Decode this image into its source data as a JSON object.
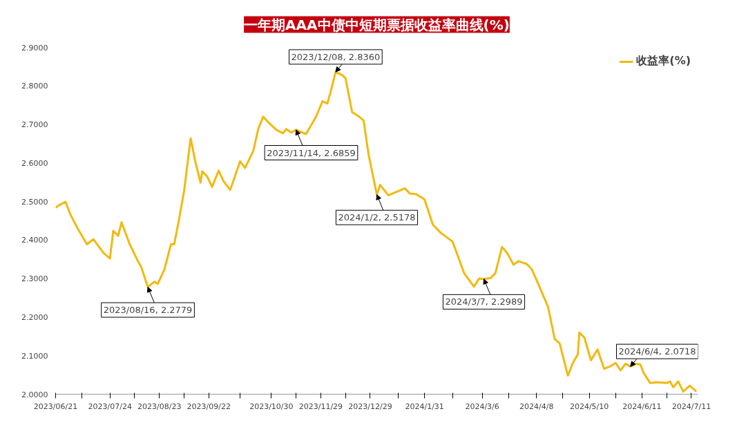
{
  "chart_data": {
    "type": "line",
    "title": "一年期AAA中债中短期票据收益率曲线(%)",
    "x": [
      "2023-06-21",
      "2023-06-23",
      "2023-06-27",
      "2023-06-30",
      "2023-07-04",
      "2023-07-10",
      "2023-07-14",
      "2023-07-20",
      "2023-07-24",
      "2023-07-26",
      "2023-07-29",
      "2023-07-31",
      "2023-08-05",
      "2023-08-10",
      "2023-08-12",
      "2023-08-16",
      "2023-08-20",
      "2023-08-22",
      "2023-08-26",
      "2023-08-30",
      "2023-09-01",
      "2023-09-04",
      "2023-09-07",
      "2023-09-11",
      "2023-09-14",
      "2023-09-17",
      "2023-09-18",
      "2023-09-21",
      "2023-09-24",
      "2023-09-28",
      "2023-10-01",
      "2023-10-05",
      "2023-10-11",
      "2023-10-14",
      "2023-10-19",
      "2023-10-22",
      "2023-10-25",
      "2023-10-29",
      "2023-11-02",
      "2023-11-06",
      "2023-11-08",
      "2023-11-11",
      "2023-11-14",
      "2023-11-20",
      "2023-11-26",
      "2023-11-30",
      "2023-12-03",
      "2023-12-05",
      "2023-12-08",
      "2023-12-12",
      "2023-12-14",
      "2023-12-18",
      "2023-12-22",
      "2023-12-25",
      "2023-12-28",
      "2024-01-02",
      "2024-01-04",
      "2024-01-09",
      "2024-01-15",
      "2024-01-19",
      "2024-01-22",
      "2024-01-26",
      "2024-01-31",
      "2024-02-05",
      "2024-02-10",
      "2024-02-17",
      "2024-02-24",
      "2024-03-01",
      "2024-03-04",
      "2024-03-07",
      "2024-03-11",
      "2024-03-14",
      "2024-03-18",
      "2024-03-21",
      "2024-03-25",
      "2024-03-28",
      "2024-04-02",
      "2024-04-05",
      "2024-04-09",
      "2024-04-15",
      "2024-04-19",
      "2024-04-22",
      "2024-04-27",
      "2024-04-30",
      "2024-05-03",
      "2024-05-04",
      "2024-05-07",
      "2024-05-11",
      "2024-05-15",
      "2024-05-19",
      "2024-05-23",
      "2024-05-26",
      "2024-05-29",
      "2024-06-01",
      "2024-06-04",
      "2024-06-07",
      "2024-06-10",
      "2024-06-12",
      "2024-06-16",
      "2024-06-20",
      "2024-06-26",
      "2024-06-28",
      "2024-06-30",
      "2024-07-03",
      "2024-07-06",
      "2024-07-10",
      "2024-07-14"
    ],
    "series": [
      {
        "name": "收益率(%)",
        "color": "#f2b90f",
        "values": [
          2.484,
          2.49,
          2.499,
          2.466,
          2.433,
          2.389,
          2.402,
          2.367,
          2.352,
          2.424,
          2.411,
          2.446,
          2.389,
          2.345,
          2.33,
          2.278,
          2.292,
          2.286,
          2.323,
          2.389,
          2.389,
          2.455,
          2.527,
          2.664,
          2.6,
          2.549,
          2.578,
          2.565,
          2.538,
          2.58,
          2.552,
          2.53,
          2.604,
          2.587,
          2.631,
          2.688,
          2.72,
          2.702,
          2.686,
          2.677,
          2.688,
          2.679,
          2.686,
          2.675,
          2.719,
          2.76,
          2.754,
          2.785,
          2.836,
          2.828,
          2.82,
          2.732,
          2.721,
          2.71,
          2.622,
          2.518,
          2.543,
          2.516,
          2.527,
          2.534,
          2.521,
          2.519,
          2.505,
          2.44,
          2.418,
          2.396,
          2.314,
          2.279,
          2.3,
          2.299,
          2.301,
          2.314,
          2.382,
          2.367,
          2.336,
          2.345,
          2.338,
          2.325,
          2.286,
          2.226,
          2.143,
          2.132,
          2.048,
          2.081,
          2.103,
          2.16,
          2.147,
          2.088,
          2.116,
          2.066,
          2.073,
          2.081,
          2.062,
          2.079,
          2.072,
          2.079,
          2.077,
          2.055,
          2.029,
          2.031,
          2.029,
          2.033,
          2.018,
          2.033,
          2.007,
          2.022,
          2.007
        ]
      }
    ],
    "xlim": [
      "2023-06-21",
      "2024-07-15"
    ],
    "xticks": [
      {
        "value": "2023-06-21",
        "label": "2023/06/21"
      },
      {
        "value": "2023-07-07",
        "label": null
      },
      {
        "value": "2023-07-24",
        "label": "2023/07/24"
      },
      {
        "value": "2023-08-08",
        "label": null
      },
      {
        "value": "2023-08-23",
        "label": "2023/08/23"
      },
      {
        "value": "2023-09-07",
        "label": null
      },
      {
        "value": "2023-09-22",
        "label": "2023/09/22"
      },
      {
        "value": "2023-10-11",
        "label": null
      },
      {
        "value": "2023-10-30",
        "label": "2023/10/30"
      },
      {
        "value": "2023-11-14",
        "label": null
      },
      {
        "value": "2023-11-29",
        "label": "2023/11/29"
      },
      {
        "value": "2023-12-14",
        "label": null
      },
      {
        "value": "2023-12-29",
        "label": "2023/12/29"
      },
      {
        "value": "2024-01-15",
        "label": null
      },
      {
        "value": "2024-01-31",
        "label": "2024/1/31"
      },
      {
        "value": "2024-02-17",
        "label": null
      },
      {
        "value": "2024-03-06",
        "label": "2024/3/6"
      },
      {
        "value": "2024-03-22",
        "label": null
      },
      {
        "value": "2024-04-08",
        "label": "2024/4/8"
      },
      {
        "value": "2024-04-24",
        "label": null
      },
      {
        "value": "2024-05-10",
        "label": "2024/5/10"
      },
      {
        "value": "2024-05-26",
        "label": null
      },
      {
        "value": "2024-06-11",
        "label": "2024/6/11"
      },
      {
        "value": "2024-06-26",
        "label": null
      },
      {
        "value": "2024-07-11",
        "label": "2024/7/11"
      }
    ],
    "ylim": [
      2.0,
      2.9
    ],
    "yticks": [
      {
        "value": 2.0,
        "label": "2.0000"
      },
      {
        "value": 2.1,
        "label": "2.1000"
      },
      {
        "value": 2.2,
        "label": "2.2000"
      },
      {
        "value": 2.3,
        "label": "2.3000"
      },
      {
        "value": 2.4,
        "label": "2.4000"
      },
      {
        "value": 2.5,
        "label": "2.5000"
      },
      {
        "value": 2.6,
        "label": "2.6000"
      },
      {
        "value": 2.7,
        "label": "2.7000"
      },
      {
        "value": 2.8,
        "label": "2.8000"
      },
      {
        "value": 2.9,
        "label": "2.9000"
      }
    ],
    "annotations": [
      {
        "text": "2023/08/16, 2.2779",
        "x": "2023-08-16",
        "y": 2.2779
      },
      {
        "text": "2023/11/14, 2.6859",
        "x": "2023-11-14",
        "y": 2.6859
      },
      {
        "text": "2023/12/08, 2.8360",
        "x": "2023-12-08",
        "y": 2.836
      },
      {
        "text": "2024/1/2, 2.5178",
        "x": "2024-01-02",
        "y": 2.5178
      },
      {
        "text": "2024/3/7, 2.2989",
        "x": "2024-03-07",
        "y": 2.2989
      },
      {
        "text": "2024/6/4, 2.0718",
        "x": "2024-06-04",
        "y": 2.0718
      }
    ],
    "legend": "top right",
    "grid": false,
    "marker": "none",
    "line_style": "solid"
  }
}
